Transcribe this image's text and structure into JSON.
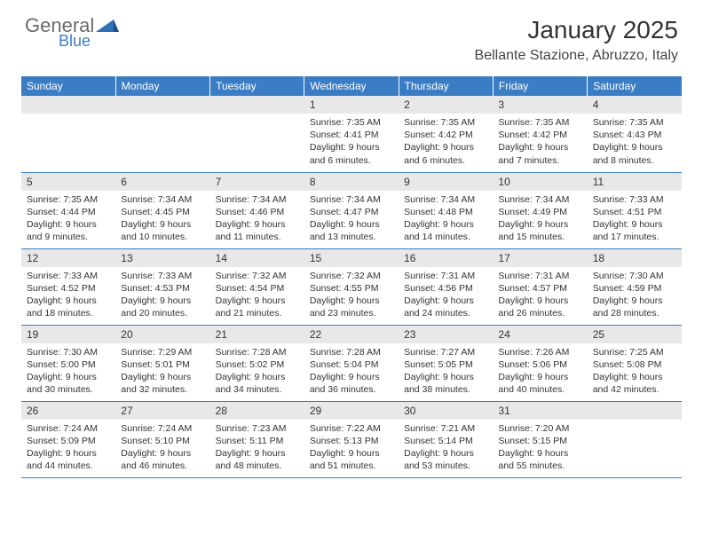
{
  "logo": {
    "text_gray": "General",
    "text_blue": "Blue"
  },
  "title": "January 2025",
  "location": "Bellante Stazione, Abruzzo, Italy",
  "colors": {
    "header_bg": "#3b7dc4",
    "header_text": "#ffffff",
    "daynum_bg": "#e8e8e8",
    "border": "#3b7dc4",
    "body_text": "#333333",
    "logo_gray": "#6b6b6b",
    "logo_blue": "#3b7dc4"
  },
  "weekdays": [
    "Sunday",
    "Monday",
    "Tuesday",
    "Wednesday",
    "Thursday",
    "Friday",
    "Saturday"
  ],
  "weeks": [
    [
      null,
      null,
      null,
      {
        "n": "1",
        "sunrise": "7:35 AM",
        "sunset": "4:41 PM",
        "daylight": "9 hours and 6 minutes."
      },
      {
        "n": "2",
        "sunrise": "7:35 AM",
        "sunset": "4:42 PM",
        "daylight": "9 hours and 6 minutes."
      },
      {
        "n": "3",
        "sunrise": "7:35 AM",
        "sunset": "4:42 PM",
        "daylight": "9 hours and 7 minutes."
      },
      {
        "n": "4",
        "sunrise": "7:35 AM",
        "sunset": "4:43 PM",
        "daylight": "9 hours and 8 minutes."
      }
    ],
    [
      {
        "n": "5",
        "sunrise": "7:35 AM",
        "sunset": "4:44 PM",
        "daylight": "9 hours and 9 minutes."
      },
      {
        "n": "6",
        "sunrise": "7:34 AM",
        "sunset": "4:45 PM",
        "daylight": "9 hours and 10 minutes."
      },
      {
        "n": "7",
        "sunrise": "7:34 AM",
        "sunset": "4:46 PM",
        "daylight": "9 hours and 11 minutes."
      },
      {
        "n": "8",
        "sunrise": "7:34 AM",
        "sunset": "4:47 PM",
        "daylight": "9 hours and 13 minutes."
      },
      {
        "n": "9",
        "sunrise": "7:34 AM",
        "sunset": "4:48 PM",
        "daylight": "9 hours and 14 minutes."
      },
      {
        "n": "10",
        "sunrise": "7:34 AM",
        "sunset": "4:49 PM",
        "daylight": "9 hours and 15 minutes."
      },
      {
        "n": "11",
        "sunrise": "7:33 AM",
        "sunset": "4:51 PM",
        "daylight": "9 hours and 17 minutes."
      }
    ],
    [
      {
        "n": "12",
        "sunrise": "7:33 AM",
        "sunset": "4:52 PM",
        "daylight": "9 hours and 18 minutes."
      },
      {
        "n": "13",
        "sunrise": "7:33 AM",
        "sunset": "4:53 PM",
        "daylight": "9 hours and 20 minutes."
      },
      {
        "n": "14",
        "sunrise": "7:32 AM",
        "sunset": "4:54 PM",
        "daylight": "9 hours and 21 minutes."
      },
      {
        "n": "15",
        "sunrise": "7:32 AM",
        "sunset": "4:55 PM",
        "daylight": "9 hours and 23 minutes."
      },
      {
        "n": "16",
        "sunrise": "7:31 AM",
        "sunset": "4:56 PM",
        "daylight": "9 hours and 24 minutes."
      },
      {
        "n": "17",
        "sunrise": "7:31 AM",
        "sunset": "4:57 PM",
        "daylight": "9 hours and 26 minutes."
      },
      {
        "n": "18",
        "sunrise": "7:30 AM",
        "sunset": "4:59 PM",
        "daylight": "9 hours and 28 minutes."
      }
    ],
    [
      {
        "n": "19",
        "sunrise": "7:30 AM",
        "sunset": "5:00 PM",
        "daylight": "9 hours and 30 minutes."
      },
      {
        "n": "20",
        "sunrise": "7:29 AM",
        "sunset": "5:01 PM",
        "daylight": "9 hours and 32 minutes."
      },
      {
        "n": "21",
        "sunrise": "7:28 AM",
        "sunset": "5:02 PM",
        "daylight": "9 hours and 34 minutes."
      },
      {
        "n": "22",
        "sunrise": "7:28 AM",
        "sunset": "5:04 PM",
        "daylight": "9 hours and 36 minutes."
      },
      {
        "n": "23",
        "sunrise": "7:27 AM",
        "sunset": "5:05 PM",
        "daylight": "9 hours and 38 minutes."
      },
      {
        "n": "24",
        "sunrise": "7:26 AM",
        "sunset": "5:06 PM",
        "daylight": "9 hours and 40 minutes."
      },
      {
        "n": "25",
        "sunrise": "7:25 AM",
        "sunset": "5:08 PM",
        "daylight": "9 hours and 42 minutes."
      }
    ],
    [
      {
        "n": "26",
        "sunrise": "7:24 AM",
        "sunset": "5:09 PM",
        "daylight": "9 hours and 44 minutes."
      },
      {
        "n": "27",
        "sunrise": "7:24 AM",
        "sunset": "5:10 PM",
        "daylight": "9 hours and 46 minutes."
      },
      {
        "n": "28",
        "sunrise": "7:23 AM",
        "sunset": "5:11 PM",
        "daylight": "9 hours and 48 minutes."
      },
      {
        "n": "29",
        "sunrise": "7:22 AM",
        "sunset": "5:13 PM",
        "daylight": "9 hours and 51 minutes."
      },
      {
        "n": "30",
        "sunrise": "7:21 AM",
        "sunset": "5:14 PM",
        "daylight": "9 hours and 53 minutes."
      },
      {
        "n": "31",
        "sunrise": "7:20 AM",
        "sunset": "5:15 PM",
        "daylight": "9 hours and 55 minutes."
      },
      null
    ]
  ],
  "labels": {
    "sunrise": "Sunrise:",
    "sunset": "Sunset:",
    "daylight": "Daylight:"
  }
}
